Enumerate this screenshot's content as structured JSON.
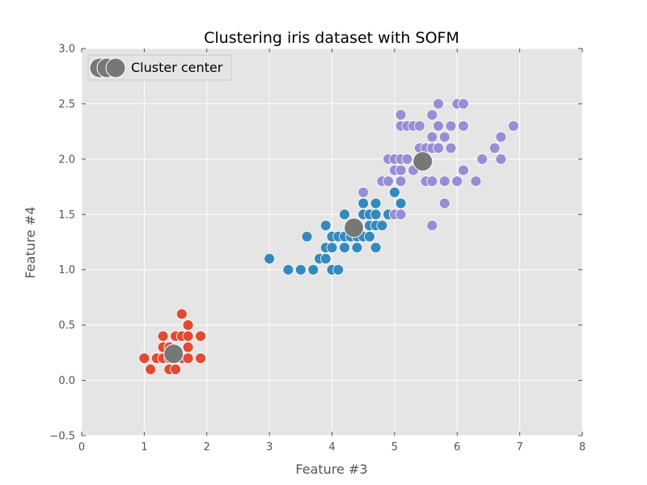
{
  "chart_data": {
    "type": "scatter",
    "title": "Clustering iris dataset with SOFM",
    "xlabel": "Feature #3",
    "ylabel": "Feature #4",
    "xlim": [
      0,
      8
    ],
    "ylim": [
      -0.5,
      3.0
    ],
    "xticks": [
      "0",
      "1",
      "2",
      "3",
      "4",
      "5",
      "6",
      "7",
      "8"
    ],
    "yticks": [
      "−0.5",
      "0.0",
      "0.5",
      "1.0",
      "1.5",
      "2.0",
      "2.5",
      "3.0"
    ],
    "grid": true,
    "legend_position": "top-left",
    "series": [
      {
        "color": "#E24A33",
        "points": [
          [
            1.0,
            0.2
          ],
          [
            1.1,
            0.1
          ],
          [
            1.2,
            0.2
          ],
          [
            1.3,
            0.2
          ],
          [
            1.3,
            0.3
          ],
          [
            1.3,
            0.4
          ],
          [
            1.4,
            0.1
          ],
          [
            1.4,
            0.2
          ],
          [
            1.4,
            0.3
          ],
          [
            1.5,
            0.1
          ],
          [
            1.5,
            0.2
          ],
          [
            1.5,
            0.4
          ],
          [
            1.6,
            0.2
          ],
          [
            1.6,
            0.4
          ],
          [
            1.6,
            0.6
          ],
          [
            1.7,
            0.2
          ],
          [
            1.7,
            0.3
          ],
          [
            1.7,
            0.4
          ],
          [
            1.7,
            0.5
          ],
          [
            1.9,
            0.2
          ],
          [
            1.9,
            0.4
          ]
        ]
      },
      {
        "color": "#348ABD",
        "points": [
          [
            3.0,
            1.1
          ],
          [
            3.3,
            1.0
          ],
          [
            3.5,
            1.0
          ],
          [
            3.6,
            1.3
          ],
          [
            3.7,
            1.0
          ],
          [
            3.8,
            1.1
          ],
          [
            3.9,
            1.1
          ],
          [
            3.9,
            1.2
          ],
          [
            3.9,
            1.4
          ],
          [
            4.0,
            1.0
          ],
          [
            4.0,
            1.2
          ],
          [
            4.0,
            1.3
          ],
          [
            4.1,
            1.0
          ],
          [
            4.1,
            1.3
          ],
          [
            4.2,
            1.2
          ],
          [
            4.2,
            1.3
          ],
          [
            4.2,
            1.5
          ],
          [
            4.3,
            1.3
          ],
          [
            4.4,
            1.2
          ],
          [
            4.4,
            1.3
          ],
          [
            4.4,
            1.4
          ],
          [
            4.5,
            1.3
          ],
          [
            4.5,
            1.5
          ],
          [
            4.5,
            1.6
          ],
          [
            4.6,
            1.3
          ],
          [
            4.6,
            1.4
          ],
          [
            4.6,
            1.5
          ],
          [
            4.7,
            1.2
          ],
          [
            4.7,
            1.4
          ],
          [
            4.7,
            1.5
          ],
          [
            4.7,
            1.6
          ],
          [
            4.8,
            1.4
          ],
          [
            4.9,
            1.5
          ],
          [
            5.0,
            1.7
          ],
          [
            5.1,
            1.6
          ]
        ]
      },
      {
        "color": "#988ED5",
        "points": [
          [
            4.5,
            1.7
          ],
          [
            4.8,
            1.8
          ],
          [
            4.9,
            1.8
          ],
          [
            4.9,
            2.0
          ],
          [
            5.0,
            1.5
          ],
          [
            5.0,
            1.9
          ],
          [
            5.0,
            2.0
          ],
          [
            5.1,
            1.5
          ],
          [
            5.1,
            1.8
          ],
          [
            5.1,
            1.9
          ],
          [
            5.1,
            2.0
          ],
          [
            5.1,
            2.3
          ],
          [
            5.1,
            2.4
          ],
          [
            5.2,
            2.0
          ],
          [
            5.2,
            2.3
          ],
          [
            5.3,
            1.9
          ],
          [
            5.3,
            2.3
          ],
          [
            5.4,
            2.1
          ],
          [
            5.4,
            2.3
          ],
          [
            5.5,
            1.8
          ],
          [
            5.5,
            2.1
          ],
          [
            5.6,
            1.4
          ],
          [
            5.6,
            1.8
          ],
          [
            5.6,
            2.1
          ],
          [
            5.6,
            2.2
          ],
          [
            5.6,
            2.4
          ],
          [
            5.7,
            2.1
          ],
          [
            5.7,
            2.3
          ],
          [
            5.7,
            2.5
          ],
          [
            5.8,
            1.6
          ],
          [
            5.8,
            1.8
          ],
          [
            5.8,
            2.2
          ],
          [
            5.9,
            2.1
          ],
          [
            5.9,
            2.3
          ],
          [
            6.0,
            1.8
          ],
          [
            6.0,
            2.5
          ],
          [
            6.1,
            1.9
          ],
          [
            6.1,
            2.3
          ],
          [
            6.1,
            2.5
          ],
          [
            6.3,
            1.8
          ],
          [
            6.4,
            2.0
          ],
          [
            6.6,
            2.1
          ],
          [
            6.7,
            2.0
          ],
          [
            6.7,
            2.2
          ],
          [
            6.9,
            2.3
          ]
        ]
      }
    ],
    "centers": {
      "name": "Cluster center",
      "color": "#777777",
      "points": [
        [
          1.47,
          0.24
        ],
        [
          4.35,
          1.38
        ],
        [
          5.45,
          1.98
        ]
      ]
    }
  }
}
